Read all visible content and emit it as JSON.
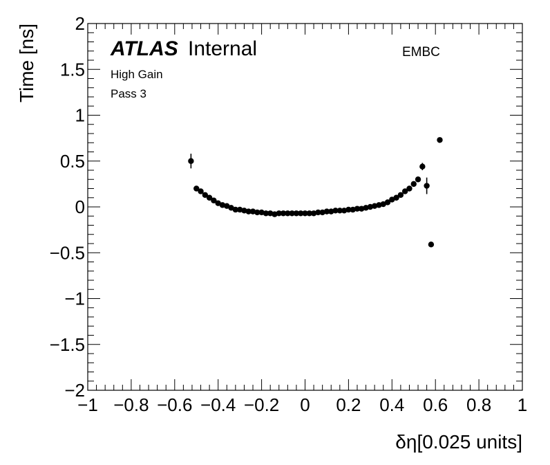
{
  "chart_data": {
    "type": "scatter",
    "xlabel": "δη[0.025 units]",
    "ylabel": "Time [ns]",
    "xlim": [
      -1,
      1
    ],
    "ylim": [
      -2,
      2
    ],
    "x_ticks": [
      -1,
      -0.8,
      -0.6,
      -0.4,
      -0.2,
      0,
      0.2,
      0.4,
      0.6,
      0.8,
      1
    ],
    "x_tick_labels": [
      "−1",
      "−0.8",
      "−0.6",
      "−0.4",
      "−0.2",
      "0",
      "0.2",
      "0.4",
      "0.6",
      "0.8",
      "1"
    ],
    "y_ticks": [
      -2,
      -1.5,
      -1,
      -0.5,
      0,
      0.5,
      1,
      1.5,
      2
    ],
    "y_tick_labels": [
      "−2",
      "−1.5",
      "−1",
      "−0.5",
      "0",
      "0.5",
      "1",
      "1.5",
      "2"
    ],
    "annotations": {
      "atlas": "ATLAS",
      "internal": "Internal",
      "gain": "High Gain",
      "pass": "Pass 3",
      "region": "EMBC"
    },
    "series": [
      {
        "name": "EMBC",
        "points": [
          {
            "x": -0.525,
            "y": 0.5,
            "err": 0.08
          },
          {
            "x": -0.5,
            "y": 0.2,
            "err": 0
          },
          {
            "x": -0.48,
            "y": 0.17,
            "err": 0
          },
          {
            "x": -0.46,
            "y": 0.13,
            "err": 0
          },
          {
            "x": -0.44,
            "y": 0.1,
            "err": 0
          },
          {
            "x": -0.42,
            "y": 0.07,
            "err": 0
          },
          {
            "x": -0.4,
            "y": 0.04,
            "err": 0
          },
          {
            "x": -0.38,
            "y": 0.02,
            "err": 0
          },
          {
            "x": -0.36,
            "y": 0.01,
            "err": 0
          },
          {
            "x": -0.34,
            "y": -0.01,
            "err": 0
          },
          {
            "x": -0.32,
            "y": -0.03,
            "err": 0
          },
          {
            "x": -0.3,
            "y": -0.03,
            "err": 0
          },
          {
            "x": -0.28,
            "y": -0.04,
            "err": 0
          },
          {
            "x": -0.26,
            "y": -0.05,
            "err": 0
          },
          {
            "x": -0.24,
            "y": -0.05,
            "err": 0
          },
          {
            "x": -0.22,
            "y": -0.06,
            "err": 0
          },
          {
            "x": -0.2,
            "y": -0.06,
            "err": 0
          },
          {
            "x": -0.18,
            "y": -0.07,
            "err": 0
          },
          {
            "x": -0.16,
            "y": -0.07,
            "err": 0
          },
          {
            "x": -0.14,
            "y": -0.08,
            "err": 0
          },
          {
            "x": -0.12,
            "y": -0.07,
            "err": 0
          },
          {
            "x": -0.1,
            "y": -0.07,
            "err": 0
          },
          {
            "x": -0.08,
            "y": -0.07,
            "err": 0
          },
          {
            "x": -0.06,
            "y": -0.07,
            "err": 0
          },
          {
            "x": -0.04,
            "y": -0.07,
            "err": 0
          },
          {
            "x": -0.02,
            "y": -0.07,
            "err": 0
          },
          {
            "x": 0.0,
            "y": -0.07,
            "err": 0
          },
          {
            "x": 0.02,
            "y": -0.07,
            "err": 0
          },
          {
            "x": 0.04,
            "y": -0.07,
            "err": 0
          },
          {
            "x": 0.06,
            "y": -0.06,
            "err": 0
          },
          {
            "x": 0.08,
            "y": -0.06,
            "err": 0
          },
          {
            "x": 0.1,
            "y": -0.05,
            "err": 0
          },
          {
            "x": 0.12,
            "y": -0.05,
            "err": 0
          },
          {
            "x": 0.14,
            "y": -0.04,
            "err": 0
          },
          {
            "x": 0.16,
            "y": -0.04,
            "err": 0
          },
          {
            "x": 0.18,
            "y": -0.04,
            "err": 0
          },
          {
            "x": 0.2,
            "y": -0.03,
            "err": 0
          },
          {
            "x": 0.22,
            "y": -0.03,
            "err": 0
          },
          {
            "x": 0.24,
            "y": -0.02,
            "err": 0
          },
          {
            "x": 0.26,
            "y": -0.02,
            "err": 0
          },
          {
            "x": 0.28,
            "y": -0.01,
            "err": 0
          },
          {
            "x": 0.3,
            "y": 0.0,
            "err": 0
          },
          {
            "x": 0.32,
            "y": 0.01,
            "err": 0
          },
          {
            "x": 0.34,
            "y": 0.02,
            "err": 0
          },
          {
            "x": 0.36,
            "y": 0.03,
            "err": 0
          },
          {
            "x": 0.38,
            "y": 0.05,
            "err": 0
          },
          {
            "x": 0.4,
            "y": 0.08,
            "err": 0
          },
          {
            "x": 0.42,
            "y": 0.1,
            "err": 0
          },
          {
            "x": 0.44,
            "y": 0.13,
            "err": 0
          },
          {
            "x": 0.46,
            "y": 0.17,
            "err": 0
          },
          {
            "x": 0.48,
            "y": 0.2,
            "err": 0
          },
          {
            "x": 0.5,
            "y": 0.25,
            "err": 0
          },
          {
            "x": 0.52,
            "y": 0.3,
            "err": 0
          },
          {
            "x": 0.54,
            "y": 0.44,
            "err": 0.04
          },
          {
            "x": 0.56,
            "y": 0.23,
            "err": 0.09
          },
          {
            "x": 0.58,
            "y": -0.41,
            "err": 0
          },
          {
            "x": 0.62,
            "y": 0.73,
            "err": 0
          }
        ]
      }
    ]
  }
}
